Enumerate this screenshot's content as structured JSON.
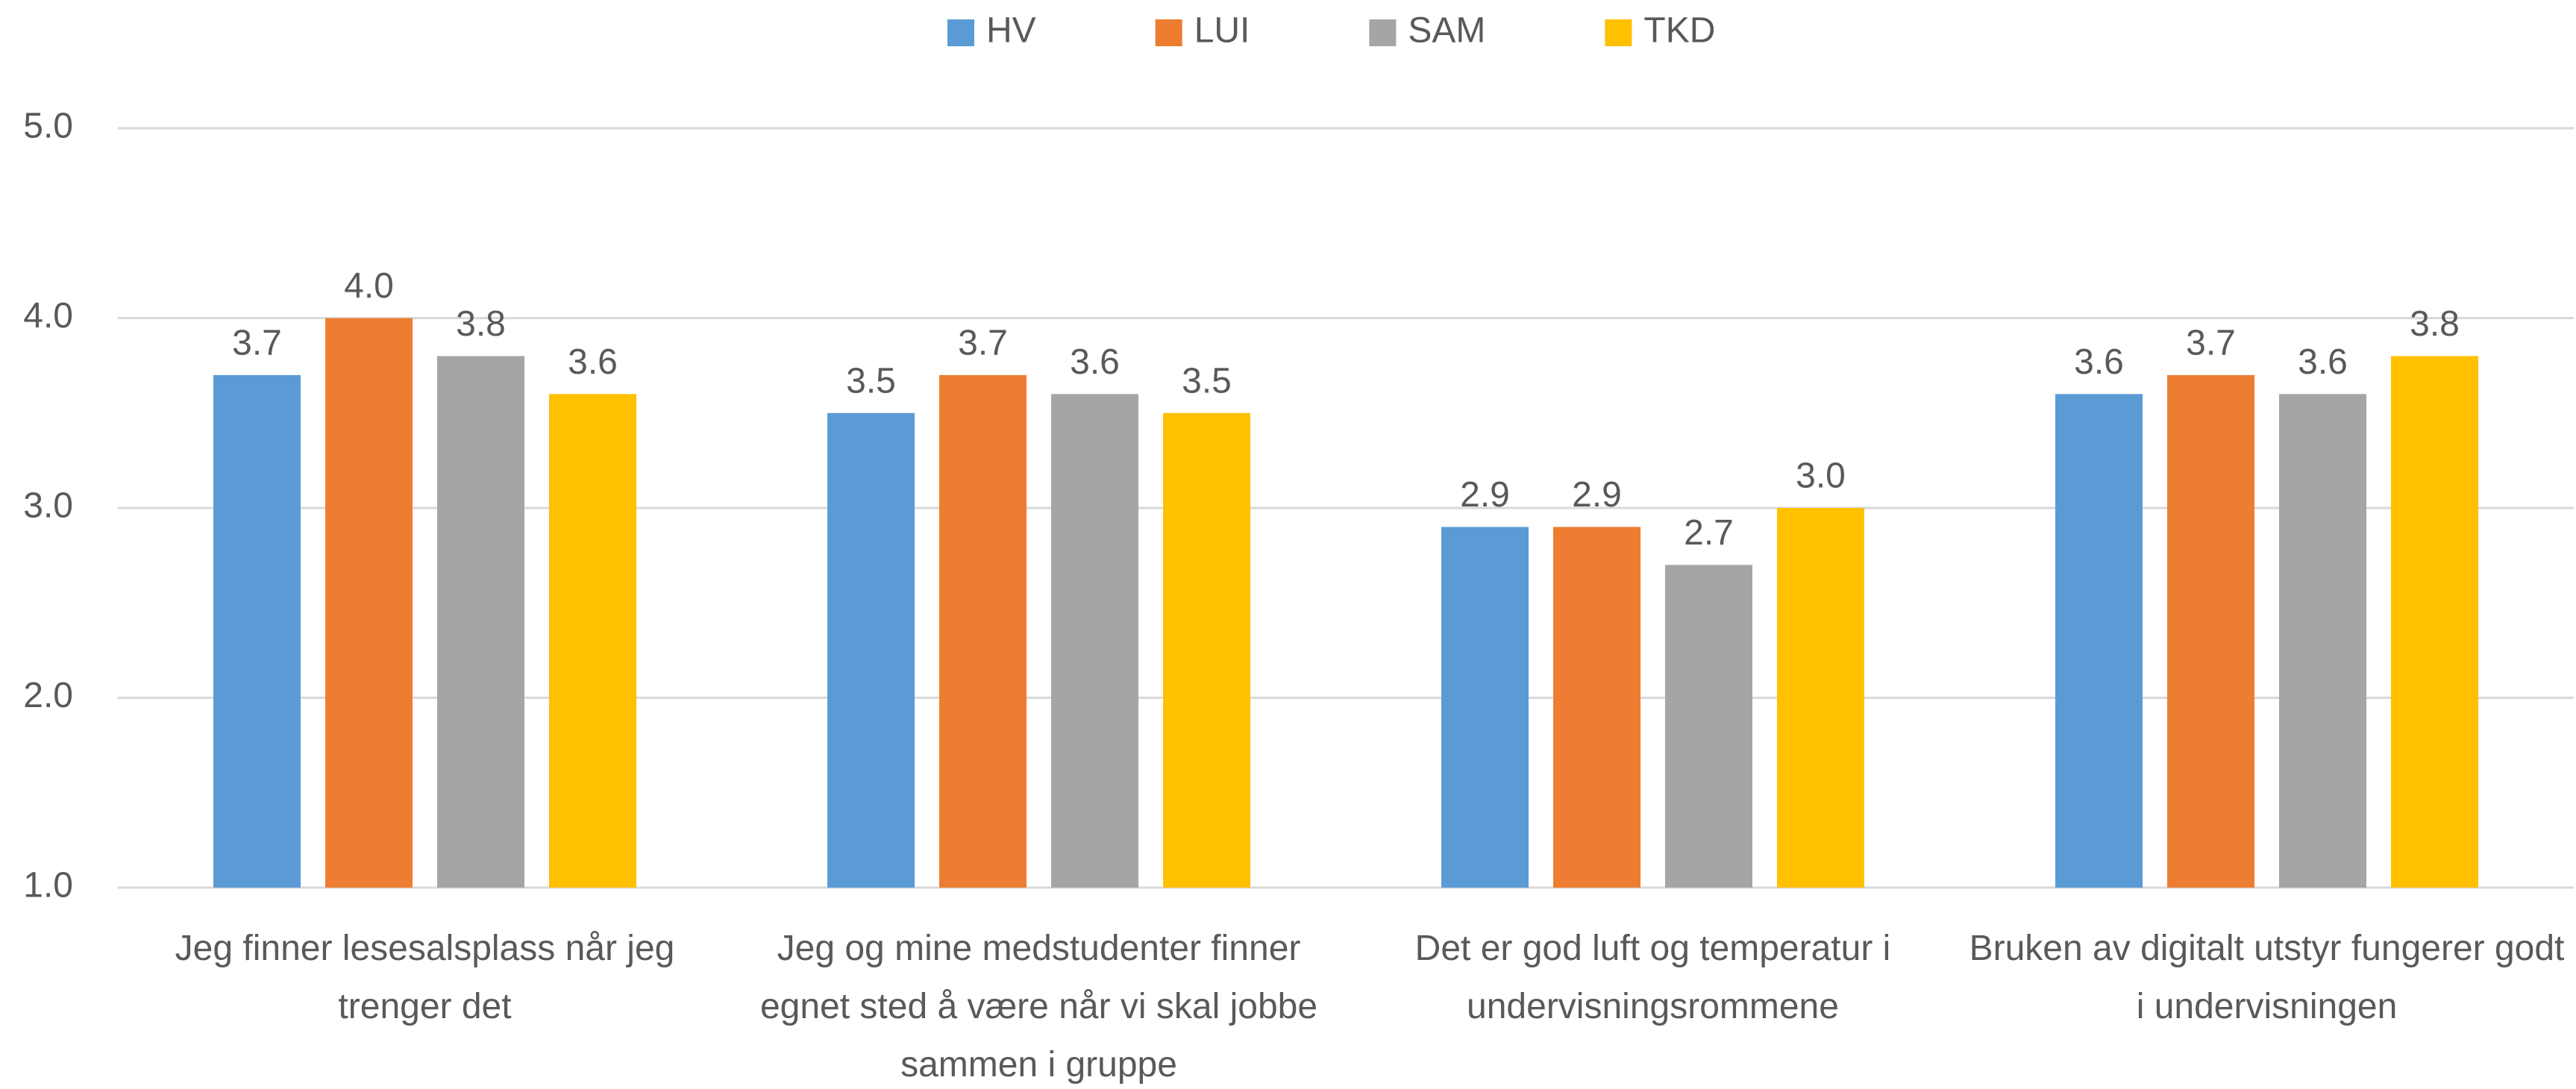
{
  "chart_data": {
    "type": "bar",
    "categories": [
      "Jeg finner lesesalsplass når jeg trenger det",
      "Jeg og mine medstudenter finner egnet sted å være når vi skal jobbe sammen i gruppe",
      "Det er god luft og temperatur i undervisningsrommene",
      "Bruken av digitalt utstyr fungerer godt i undervisningen"
    ],
    "series": [
      {
        "name": "HV",
        "color": "#5b9bd5",
        "values": [
          3.7,
          3.5,
          2.9,
          3.6
        ],
        "value_labels": [
          "3.7",
          "3.5",
          "2.9",
          "3.6"
        ]
      },
      {
        "name": "LUI",
        "color": "#ed7d31",
        "values": [
          4.0,
          3.7,
          2.9,
          3.7
        ],
        "value_labels": [
          "4.0",
          "3.7",
          "2.9",
          "3.7"
        ]
      },
      {
        "name": "SAM",
        "color": "#a5a5a5",
        "values": [
          3.8,
          3.6,
          2.7,
          3.6
        ],
        "value_labels": [
          "3.8",
          "3.6",
          "2.7",
          "3.6"
        ]
      },
      {
        "name": "TKD",
        "color": "#ffc000",
        "values": [
          3.6,
          3.5,
          3.0,
          3.8
        ],
        "value_labels": [
          "3.6",
          "3.5",
          "3.0",
          "3.8"
        ]
      }
    ],
    "ylim": [
      1,
      5
    ],
    "yticks": [
      {
        "value": 1,
        "label": "1.0"
      },
      {
        "value": 2,
        "label": "2.0"
      },
      {
        "value": 3,
        "label": "3.0"
      },
      {
        "value": 4,
        "label": "4.0"
      },
      {
        "value": 5,
        "label": "5.0"
      }
    ],
    "grid": true,
    "legend": "top"
  }
}
